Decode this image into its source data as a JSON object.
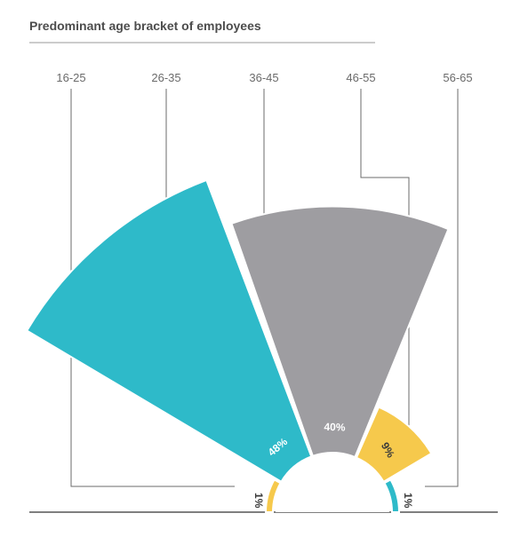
{
  "chart_data": {
    "type": "radial-bar",
    "title": "Predominant age bracket of employees",
    "categories": [
      "16-25",
      "26-35",
      "36-45",
      "46-55",
      "56-65"
    ],
    "values": [
      1,
      48,
      40,
      9,
      1
    ],
    "value_labels": [
      "1%",
      "48%",
      "40%",
      "9%",
      "1%"
    ],
    "colors": [
      "#f6c94c",
      "#2ebac9",
      "#9e9da1",
      "#f6c94c",
      "#2ebac9"
    ],
    "unit": "%"
  }
}
